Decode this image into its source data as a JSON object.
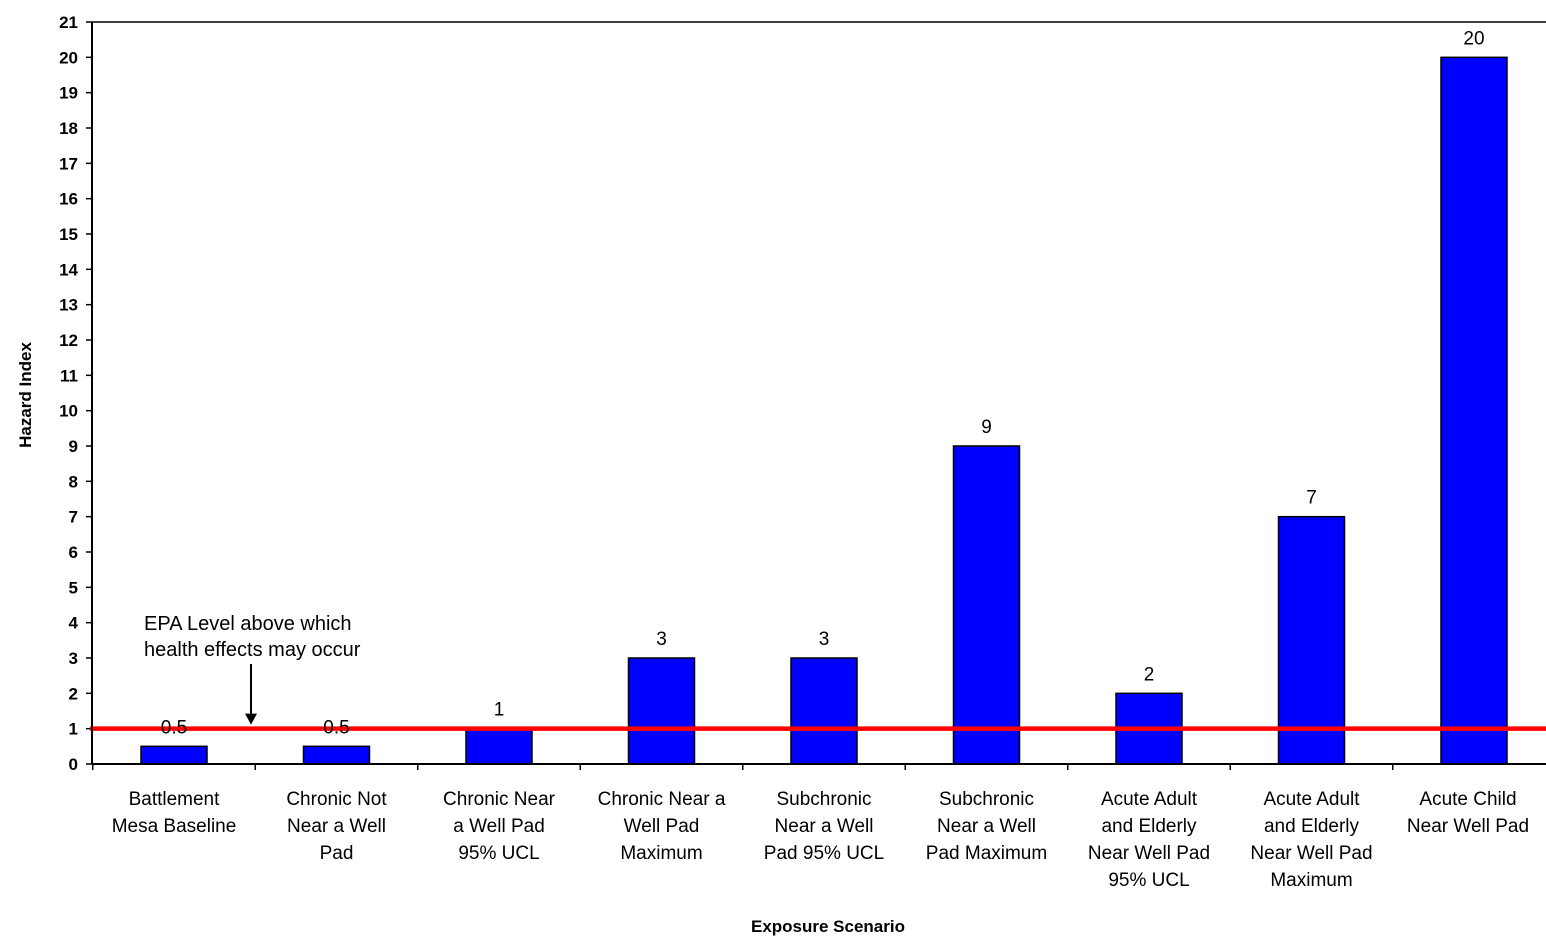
{
  "chart_data": {
    "type": "bar",
    "title": "",
    "xlabel": "Exposure Scenario",
    "ylabel": "Hazard Index",
    "ylim": [
      0,
      21
    ],
    "yticks": [
      0,
      1,
      2,
      3,
      4,
      5,
      6,
      7,
      8,
      9,
      10,
      11,
      12,
      13,
      14,
      15,
      16,
      17,
      18,
      19,
      20,
      21
    ],
    "grid": false,
    "categories": [
      [
        "Battlement",
        "Mesa Baseline"
      ],
      [
        "Chronic Not",
        "Near a Well",
        "Pad"
      ],
      [
        "Chronic  Near",
        "a Well Pad",
        "95% UCL"
      ],
      [
        "Chronic Near a",
        "Well Pad",
        "Maximum"
      ],
      [
        "Subchronic",
        "Near a Well",
        "Pad 95% UCL"
      ],
      [
        "Subchronic",
        "Near a Well",
        "Pad Maximum"
      ],
      [
        "Acute Adult",
        "and Elderly",
        "Near Well Pad",
        "95% UCL"
      ],
      [
        "Acute Adult",
        "and Elderly",
        "Near Well Pad",
        "Maximum"
      ],
      [
        "Acute Child",
        "Near Well Pad"
      ]
    ],
    "values": [
      0.5,
      0.5,
      1,
      3,
      3,
      9,
      2,
      7,
      20
    ],
    "value_labels": [
      "0.5",
      "0.5",
      "1",
      "3",
      "3",
      "9",
      "2",
      "7",
      "20"
    ],
    "bar_color": "#0000ff",
    "reference_line": {
      "value": 1,
      "color": "#ff0000"
    },
    "annotation": {
      "lines": [
        "EPA Level above which",
        "health effects may occur"
      ],
      "points_to_value": 1
    }
  }
}
